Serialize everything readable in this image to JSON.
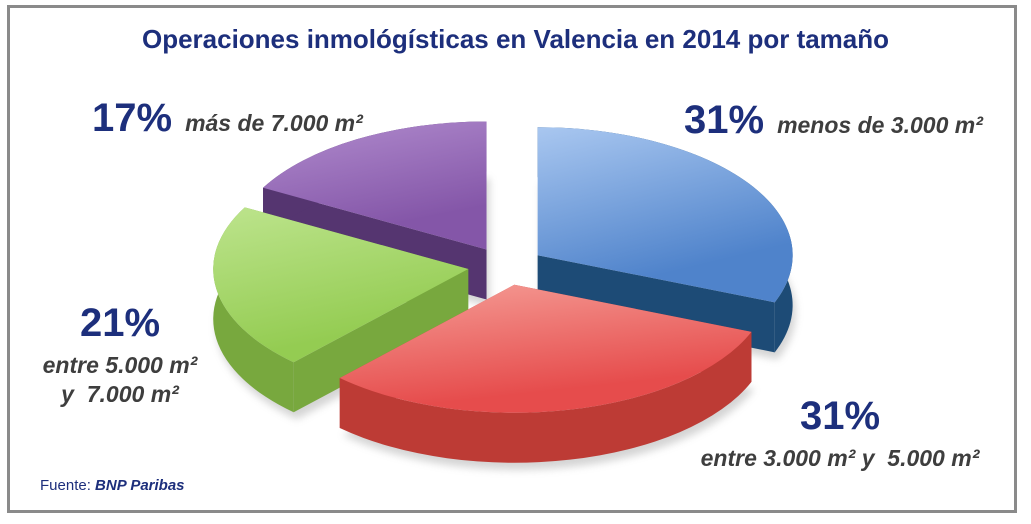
{
  "title": "Operaciones inmológísticas en Valencia en 2014 por tamaño",
  "source": {
    "prefix": "Fuente: ",
    "name": "BNP Paribas"
  },
  "colors": {
    "title_text": "#1d2f7c",
    "desc_text": "#3e3e3e",
    "frame_border": "#8a8a8a"
  },
  "labels": {
    "blue": {
      "pct": "31%",
      "desc": "menos de 3.000 m²"
    },
    "red": {
      "pct": "31%",
      "desc": "entre 3.000 m² y  5.000 m²"
    },
    "green": {
      "pct": "21%",
      "desc_line1": "entre 5.000 m²",
      "desc_line2": "y  7.000 m²"
    },
    "purple": {
      "pct": "17%",
      "desc": "más de 7.000 m²"
    }
  },
  "chart_data": {
    "type": "pie",
    "style": "3d-exploded",
    "title": "Operaciones inmológísticas en Valencia en 2014 por tamaño",
    "unit": "%",
    "start_angle_deg": -90,
    "direction": "clockwise",
    "legend_position": "labels-around-slices",
    "slices": [
      {
        "name": "menos-de-3000",
        "label": "menos de 3.000 m²",
        "value": 31,
        "color_top": "#4f83cb",
        "color_top_light": "#a9c7f0",
        "color_side": "#1d4b76"
      },
      {
        "name": "entre-3000-5000",
        "label": "entre 3.000 m² y 5.000 m²",
        "value": 31,
        "color_top": "#e64c4c",
        "color_top_light": "#f59e97",
        "color_side": "#bd3b35"
      },
      {
        "name": "entre-5000-7000",
        "label": "entre 5.000 m² y 7.000 m²",
        "value": 21,
        "color_top": "#94cc52",
        "color_top_light": "#bde48d",
        "color_side": "#78a83e"
      },
      {
        "name": "mas-de-7000",
        "label": "más de 7.000 m²",
        "value": 17,
        "color_top": "#8456a8",
        "color_top_light": "#b18cce",
        "color_side": "#553570"
      }
    ]
  }
}
